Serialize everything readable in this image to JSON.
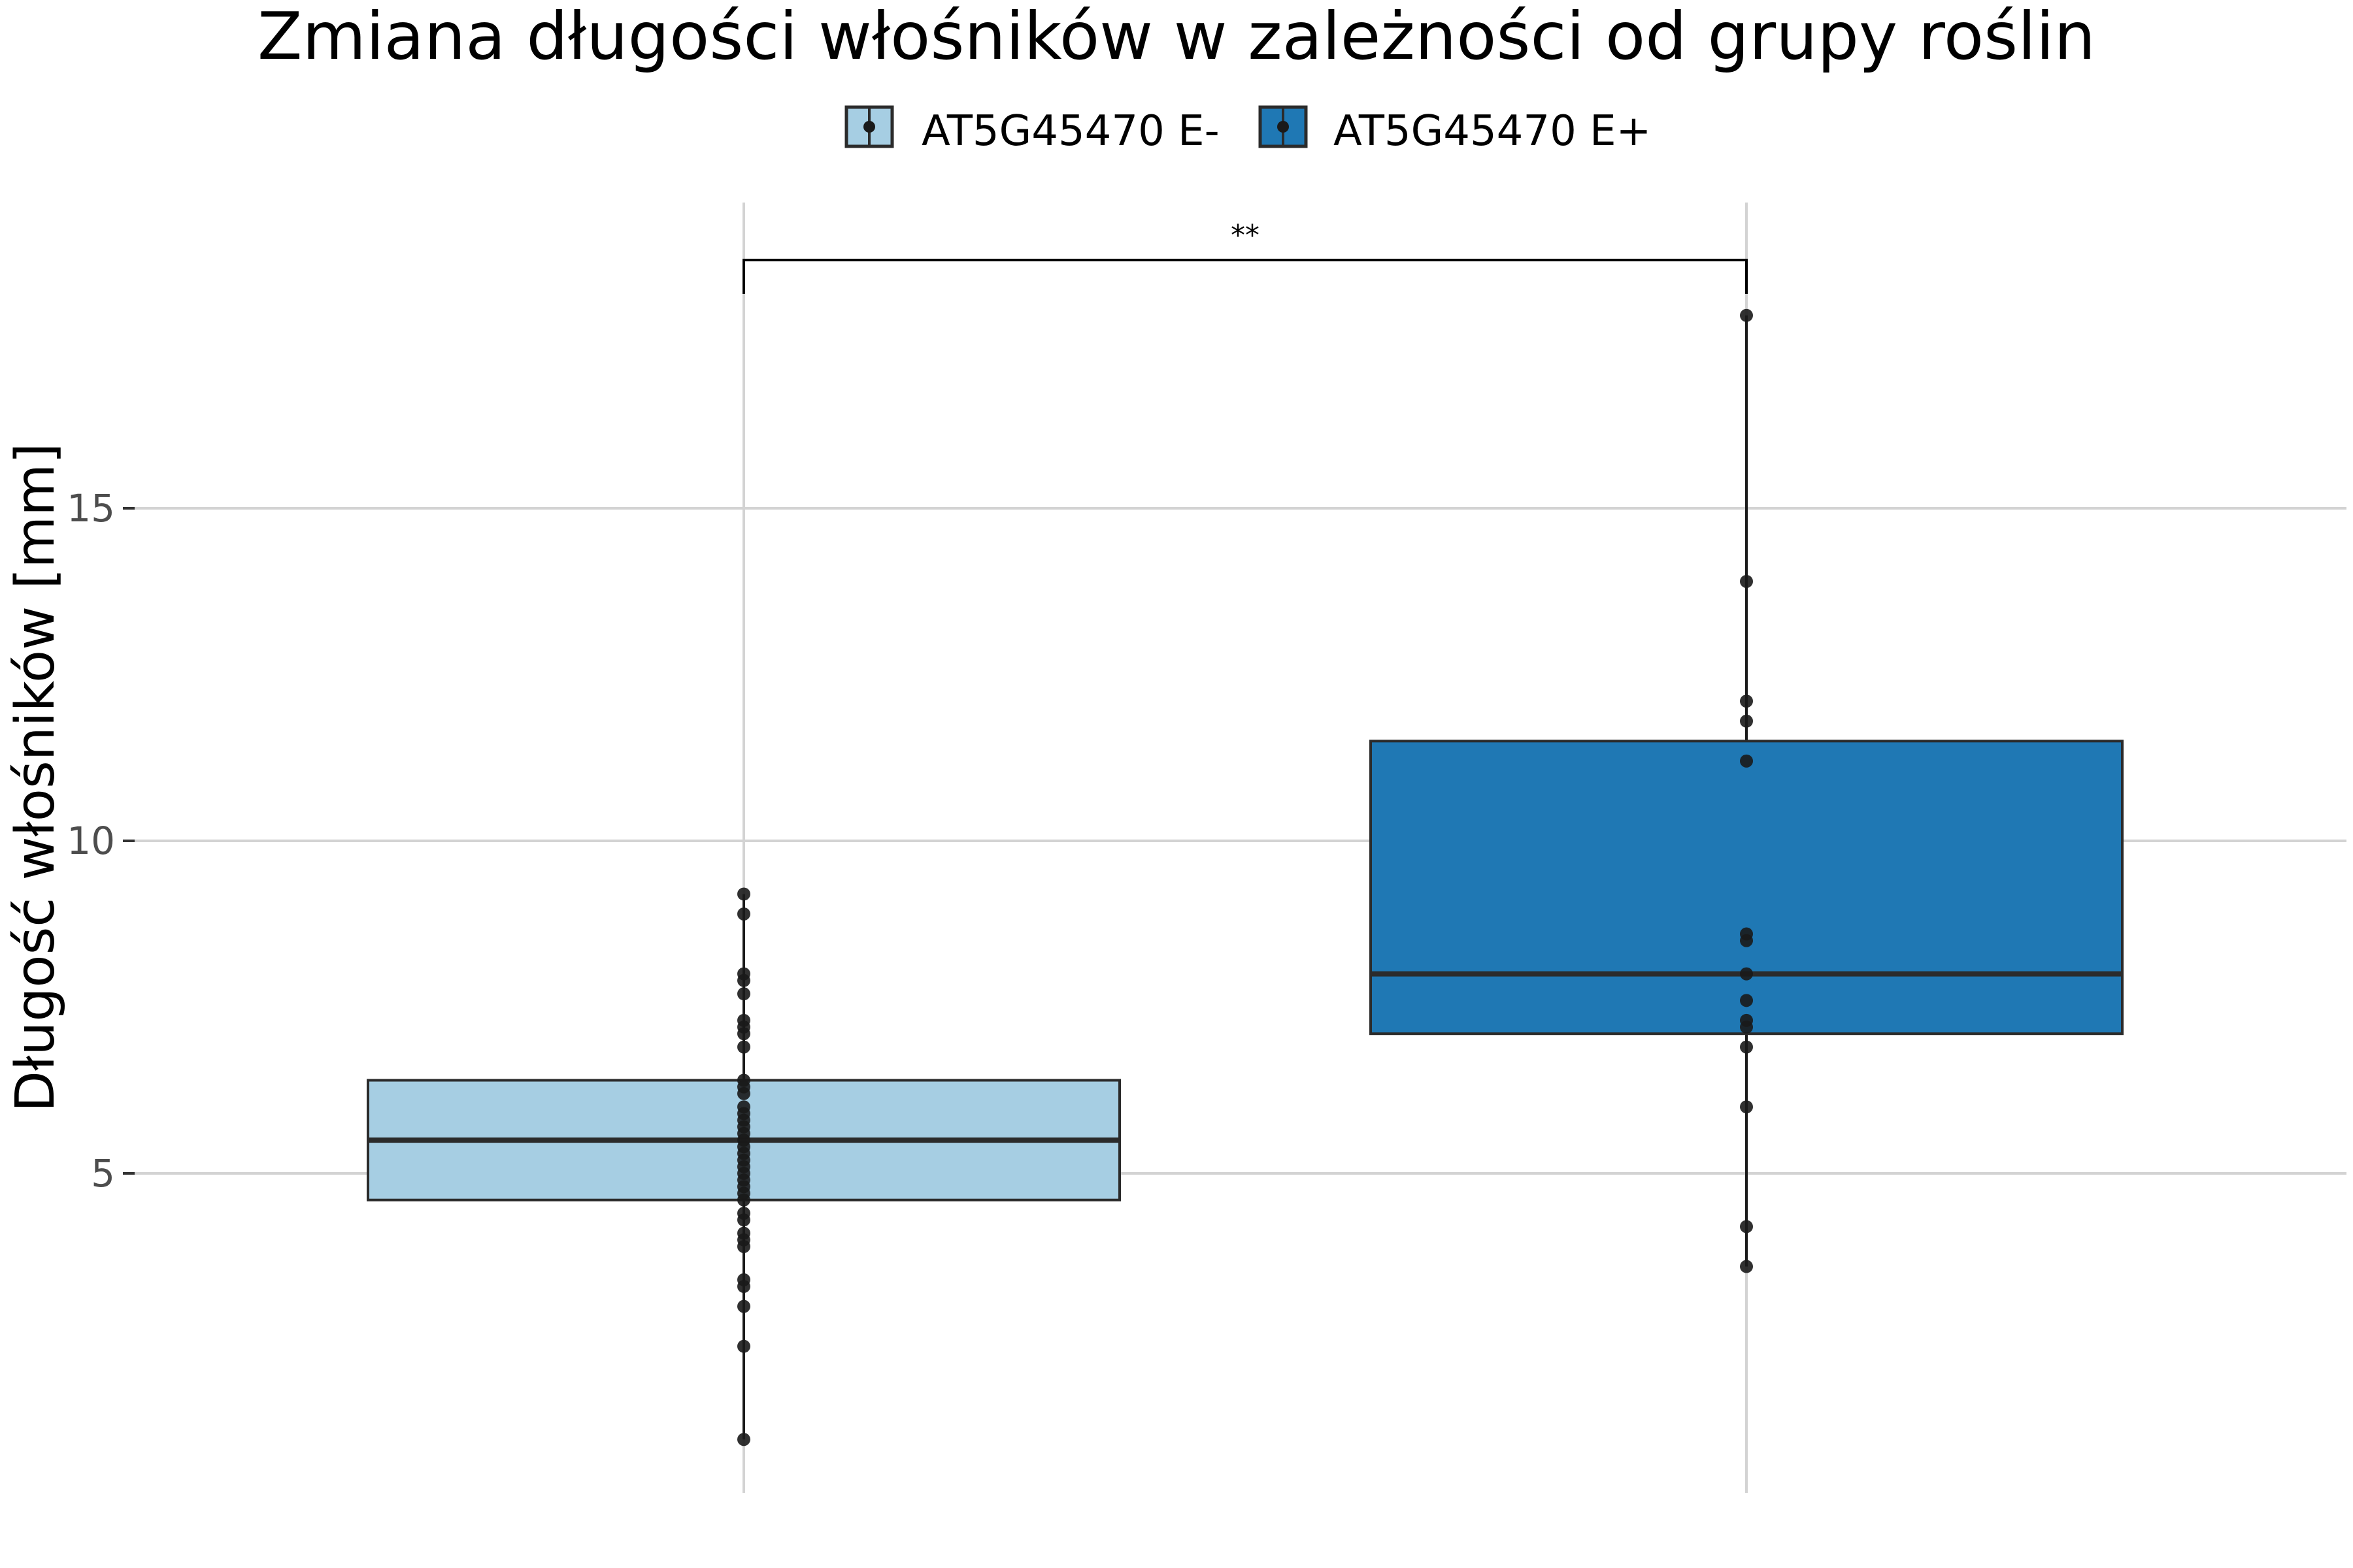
{
  "chart_data": {
    "type": "box",
    "title": "Zmiana długości włośników w zależności od grupy roślin",
    "xlabel": "",
    "ylabel": "Długość włośników [mm]",
    "ylim": [
      0.0,
      19.0
    ],
    "yticks": [
      5,
      10,
      15
    ],
    "grid": true,
    "legend_position": "top",
    "colors": {
      "AT5G45470 E-": "#a6cee3",
      "AT5G45470 E+": "#1f78b4"
    },
    "significance": {
      "label": "**",
      "between": [
        "AT5G45470 E-",
        "AT5G45470 E+"
      ]
    },
    "series": [
      {
        "name": "AT5G45470 E-",
        "box": {
          "whisker_low": 1.0,
          "q1": 4.6,
          "median": 5.5,
          "q3": 6.4,
          "whisker_high": 9.2
        },
        "points": [
          9.2,
          8.9,
          8.0,
          7.9,
          7.7,
          7.3,
          7.2,
          7.1,
          6.9,
          6.4,
          6.3,
          6.2,
          6.0,
          5.9,
          5.8,
          5.7,
          5.6,
          5.5,
          5.4,
          5.3,
          5.2,
          5.1,
          5.0,
          4.9,
          4.8,
          4.7,
          4.6,
          4.4,
          4.3,
          4.1,
          4.0,
          3.9,
          3.4,
          3.3,
          3.0,
          2.4,
          1.0
        ]
      },
      {
        "name": "AT5G45470 E+",
        "box": {
          "whisker_low": 3.6,
          "q1": 7.1,
          "median": 8.0,
          "q3": 11.5,
          "whisker_high": 17.9
        },
        "points": [
          17.9,
          13.9,
          12.1,
          11.8,
          11.2,
          8.6,
          8.5,
          8.0,
          7.6,
          7.3,
          7.2,
          6.9,
          6.0,
          4.2,
          3.6
        ]
      }
    ]
  }
}
